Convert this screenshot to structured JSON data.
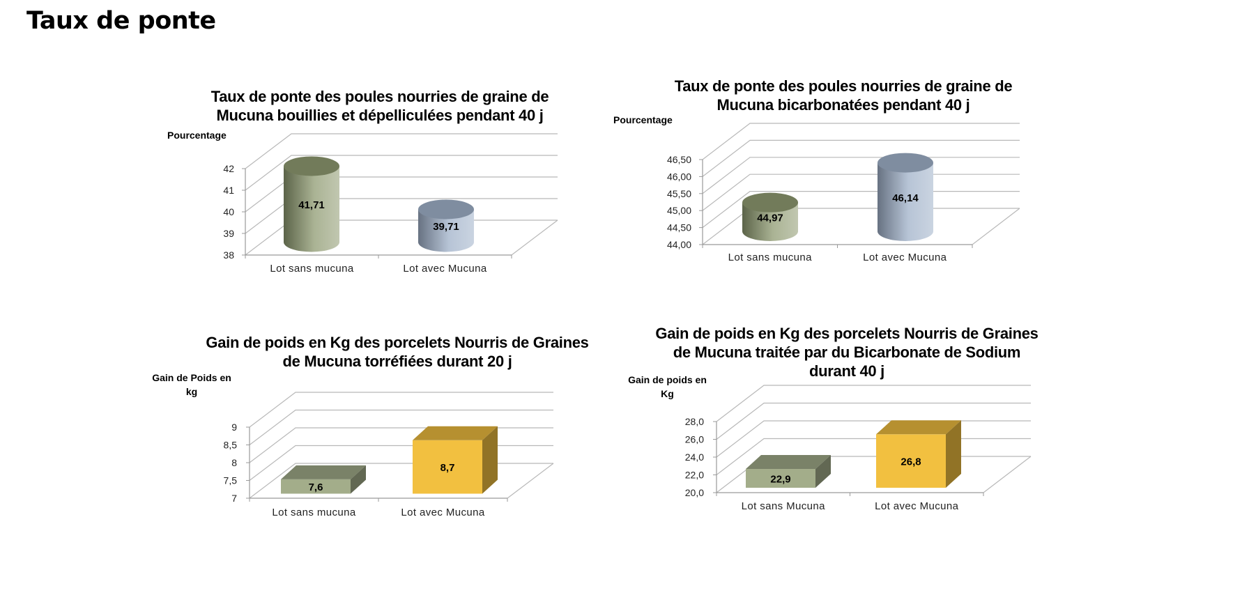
{
  "page": {
    "title": "Taux de ponte"
  },
  "chart_data": [
    {
      "type": "bar",
      "shape": "cylinder",
      "title": "Taux de ponte des poules nourries de graine de\nMucuna  bouillies et dépelliculées pendant 40 j",
      "ylabel": "Pourcentage",
      "xlabel": "",
      "categories": [
        "Lot sans mucuna",
        "Lot avec Mucuna"
      ],
      "values": [
        41.71,
        39.71
      ],
      "data_labels": [
        "41,71",
        "39,71"
      ],
      "ylim": [
        38,
        42
      ],
      "y_ticks": [
        "38",
        "39",
        "40",
        "41",
        "42"
      ],
      "colors": [
        "#8e9a70",
        "#9fb0c8"
      ],
      "grid": true
    },
    {
      "type": "bar",
      "shape": "cylinder",
      "title": "Taux de ponte des poules nourries de graine de\nMucuna  bicarbonatées pendant 40 j",
      "ylabel": "Pourcentage",
      "xlabel": "",
      "categories": [
        "Lot sans mucuna",
        "Lot avec Mucuna"
      ],
      "values": [
        44.97,
        46.14
      ],
      "data_labels": [
        "44,97",
        "46,14"
      ],
      "ylim": [
        44.0,
        46.5
      ],
      "y_ticks": [
        "44,00",
        "44,50",
        "45,00",
        "45,50",
        "46,00",
        "46,50"
      ],
      "colors": [
        "#8e9a70",
        "#9fb0c8"
      ],
      "grid": true
    },
    {
      "type": "bar",
      "shape": "box",
      "title": "Gain de poids en Kg des porcelets Nourris de Graines\nde Mucuna torréfiées  durant 20 j",
      "ylabel": "Gain de Poids en\nkg",
      "xlabel": "",
      "categories": [
        "Lot sans mucuna",
        "Lot avec Mucuna"
      ],
      "values": [
        7.6,
        8.7
      ],
      "data_labels": [
        "7,6",
        "8,7"
      ],
      "ylim": [
        7,
        9
      ],
      "y_ticks": [
        "7",
        "7,5",
        "8",
        "8,5",
        "9"
      ],
      "colors": [
        "#a3ad8a",
        "#f2c040"
      ],
      "grid": true
    },
    {
      "type": "bar",
      "shape": "box",
      "title": "Gain de poids en Kg des porcelets Nourris de Graines\nde Mucuna traitée par du Bicarbonate de Sodium\ndurant 40 j",
      "ylabel": "Gain de poids en\nKg",
      "xlabel": "",
      "categories": [
        "Lot sans Mucuna",
        "Lot avec Mucuna"
      ],
      "values": [
        22.9,
        26.8
      ],
      "data_labels": [
        "22,9",
        "26,8"
      ],
      "ylim": [
        20,
        28
      ],
      "y_ticks": [
        "20,0",
        "22,0",
        "24,0",
        "26,0",
        "28,0"
      ],
      "colors": [
        "#a3ad8a",
        "#f2c040"
      ],
      "grid": true
    }
  ]
}
